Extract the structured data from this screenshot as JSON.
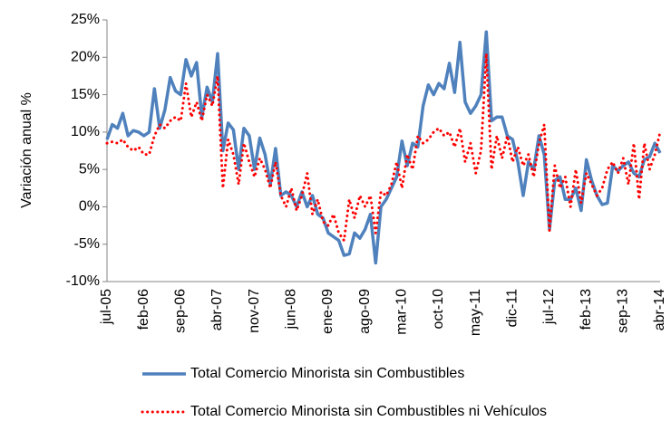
{
  "chart_data": {
    "type": "line",
    "y_label": "Variación anual %",
    "categories": [
      "jul-05",
      null,
      null,
      null,
      null,
      null,
      null,
      "feb-06",
      null,
      null,
      null,
      null,
      null,
      null,
      "sep-06",
      null,
      null,
      null,
      null,
      null,
      null,
      "abr-07",
      null,
      null,
      null,
      null,
      null,
      null,
      "nov-07",
      null,
      null,
      null,
      null,
      null,
      null,
      "jun-08",
      null,
      null,
      null,
      null,
      null,
      null,
      "ene-09",
      null,
      null,
      null,
      null,
      null,
      null,
      "ago-09",
      null,
      null,
      null,
      null,
      null,
      null,
      "mar-10",
      null,
      null,
      null,
      null,
      null,
      null,
      "oct-10",
      null,
      null,
      null,
      null,
      null,
      null,
      "may-11",
      null,
      null,
      null,
      null,
      null,
      null,
      "dic-11",
      null,
      null,
      null,
      null,
      null,
      null,
      "jul-12",
      null,
      null,
      null,
      null,
      null,
      null,
      "feb-13",
      null,
      null,
      null,
      null,
      null,
      null,
      "sep-13",
      null,
      null,
      null,
      null,
      null,
      null,
      "abr-14"
    ],
    "series": [
      {
        "name": "Total Comercio Minorista sin Combustibles",
        "color": "#4f81bd",
        "style": "solid",
        "values": [
          9,
          11,
          10.5,
          12.5,
          9.5,
          10.2,
          10,
          9.5,
          10,
          15.8,
          10.5,
          13,
          17.3,
          15.5,
          15,
          19.7,
          17.5,
          19.3,
          12,
          16,
          14,
          20.5,
          7.5,
          11.2,
          10.3,
          5,
          10.5,
          9.5,
          5,
          9.2,
          7,
          3,
          7.8,
          1.5,
          2,
          1.5,
          0,
          2,
          0,
          1.5,
          -1,
          -1.5,
          -3.5,
          -4,
          -4.5,
          -6.5,
          -6.3,
          -3.5,
          -4.2,
          -3,
          -1,
          -7.5,
          0,
          1,
          2.5,
          4,
          8.8,
          5.5,
          8.5,
          8,
          13.5,
          16.3,
          15,
          16.5,
          15.8,
          19.2,
          15.3,
          22,
          14,
          12.5,
          13.5,
          15,
          23.4,
          11.5,
          12,
          12,
          9.5,
          9,
          6,
          1.5,
          6,
          5,
          9.5,
          7,
          -3,
          3.5,
          4,
          1,
          1,
          2.5,
          -0.5,
          6.3,
          3.5,
          1.5,
          0.3,
          0.5,
          5.5,
          4.8,
          5.5,
          6,
          4.5,
          4,
          6.3,
          6.7,
          8.5,
          7.2
        ]
      },
      {
        "name": "Total Comercio Minorista sin Combustibles ni Vehículos",
        "color": "#ff0000",
        "style": "dotted",
        "values": [
          8.5,
          8.7,
          8.5,
          9,
          8,
          7.5,
          8,
          7,
          7,
          9.5,
          11,
          10.5,
          11.5,
          12,
          11.5,
          16.5,
          12,
          14,
          11.5,
          15,
          13.5,
          17.5,
          2.5,
          9,
          7,
          3,
          8.5,
          6,
          4,
          6.5,
          5,
          2.5,
          6,
          1.5,
          0,
          2.5,
          -0.5,
          1.5,
          4.5,
          -1,
          1,
          -2,
          -2.5,
          -1,
          -3.5,
          -4.5,
          1,
          -1.5,
          1.5,
          0,
          1.5,
          -3.5,
          2,
          1.5,
          3,
          6,
          2.5,
          7,
          5,
          9.5,
          8.5,
          9,
          10,
          10.5,
          9.5,
          10,
          8,
          10.5,
          6,
          8.5,
          4.5,
          7.5,
          20.5,
          5,
          9.5,
          6.5,
          9.5,
          6,
          8,
          5.5,
          7,
          4,
          8.5,
          11,
          -3.2,
          5.5,
          2.5,
          4,
          0,
          5,
          0.5,
          4.5,
          3,
          1.5,
          2.5,
          5,
          6,
          4.5,
          6.5,
          3,
          8.5,
          1,
          8.5,
          5,
          7,
          10
        ]
      }
    ],
    "ylim": [
      -10,
      25
    ],
    "yticks": [
      {
        "value": -10,
        "label": "-10%"
      },
      {
        "value": -5,
        "label": "-5%"
      },
      {
        "value": 0,
        "label": "0%"
      },
      {
        "value": 5,
        "label": "5%"
      },
      {
        "value": 10,
        "label": "10%"
      },
      {
        "value": 15,
        "label": "15%"
      },
      {
        "value": 20,
        "label": "20%"
      },
      {
        "value": 25,
        "label": "25%"
      }
    ],
    "legend": "bottom"
  }
}
